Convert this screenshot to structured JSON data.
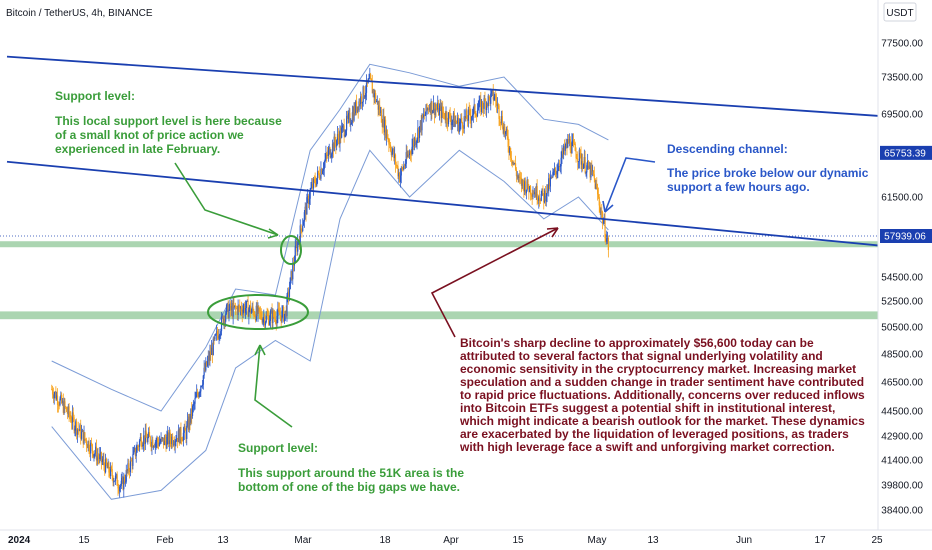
{
  "header": {
    "title": "Bitcoin / TetherUS, 4h, BINANCE"
  },
  "currency_badge": "USDT",
  "colors": {
    "channel": "#1a3fb0",
    "zone": "#8fc797",
    "green_text": "#3a9d3a",
    "red_text": "#7a1020",
    "band": "#7b9bd6",
    "candle_up": "#2a57c8",
    "candle_down": "#f7a21b",
    "axis_text": "#131722"
  },
  "chart_data": {
    "type": "candlestick",
    "symbol": "Bitcoin / TetherUS",
    "timeframe": "4h",
    "exchange": "BINANCE",
    "y_axis": {
      "ticks": [
        "77500.00",
        "73500.00",
        "69500.00",
        "61500.00",
        "54500.00",
        "52500.00",
        "50500.00",
        "48500.00",
        "46500.00",
        "44500.00",
        "42900.00",
        "41400.00",
        "39800.00",
        "38400.00"
      ],
      "ylim": [
        37800,
        79500
      ]
    },
    "x_axis": {
      "ticks": [
        "2024",
        "15",
        "Feb",
        "13",
        "Mar",
        "18",
        "Apr",
        "15",
        "May",
        "13",
        "Jun",
        "17",
        "25"
      ]
    },
    "current_price": "57939.06",
    "reference_price": "65753.39",
    "price_path": [
      {
        "date": "2024-01-10",
        "close": 46000
      },
      {
        "date": "2024-01-16",
        "close": 43000
      },
      {
        "date": "2024-01-22",
        "close": 40500
      },
      {
        "date": "2024-01-24",
        "close": 39700
      },
      {
        "date": "2024-01-28",
        "close": 42800
      },
      {
        "date": "2024-02-01",
        "close": 42500
      },
      {
        "date": "2024-02-06",
        "close": 43100
      },
      {
        "date": "2024-02-10",
        "close": 47500
      },
      {
        "date": "2024-02-14",
        "close": 51700
      },
      {
        "date": "2024-02-18",
        "close": 52000
      },
      {
        "date": "2024-02-22",
        "close": 51200
      },
      {
        "date": "2024-02-26",
        "close": 51500
      },
      {
        "date": "2024-02-28",
        "close": 56500
      },
      {
        "date": "2024-03-02",
        "close": 62000
      },
      {
        "date": "2024-03-06",
        "close": 66000
      },
      {
        "date": "2024-03-10",
        "close": 69000
      },
      {
        "date": "2024-03-14",
        "close": 73000
      },
      {
        "date": "2024-03-20",
        "close": 63500
      },
      {
        "date": "2024-03-26",
        "close": 70500
      },
      {
        "date": "2024-04-01",
        "close": 68500
      },
      {
        "date": "2024-04-08",
        "close": 71500
      },
      {
        "date": "2024-04-13",
        "close": 63000
      },
      {
        "date": "2024-04-18",
        "close": 61500
      },
      {
        "date": "2024-04-23",
        "close": 66800
      },
      {
        "date": "2024-04-28",
        "close": 63500
      },
      {
        "date": "2024-05-01",
        "close": 57000
      }
    ],
    "bands": [
      {
        "date": "2024-01-10",
        "upper": 48000,
        "lower": 43500
      },
      {
        "date": "2024-01-22",
        "upper": 46000,
        "lower": 39000
      },
      {
        "date": "2024-02-01",
        "upper": 44500,
        "lower": 39500
      },
      {
        "date": "2024-02-10",
        "upper": 49000,
        "lower": 42000
      },
      {
        "date": "2024-02-16",
        "upper": 53500,
        "lower": 47500
      },
      {
        "date": "2024-02-24",
        "upper": 53000,
        "lower": 49500
      },
      {
        "date": "2024-03-02",
        "upper": 66000,
        "lower": 48000
      },
      {
        "date": "2024-03-08",
        "upper": 70000,
        "lower": 59500
      },
      {
        "date": "2024-03-14",
        "upper": 75000,
        "lower": 66000
      },
      {
        "date": "2024-03-22",
        "upper": 74000,
        "lower": 61500
      },
      {
        "date": "2024-04-01",
        "upper": 72500,
        "lower": 66000
      },
      {
        "date": "2024-04-10",
        "upper": 73500,
        "lower": 63000
      },
      {
        "date": "2024-04-18",
        "upper": 69000,
        "lower": 59500
      },
      {
        "date": "2024-04-25",
        "upper": 68500,
        "lower": 61500
      },
      {
        "date": "2024-05-01",
        "upper": 67000,
        "lower": 58500
      }
    ],
    "channel_lines": [
      {
        "from": {
          "date": "2024-01-01",
          "price": 75900
        },
        "to": {
          "date": "2024-06-28",
          "price": 69200
        }
      },
      {
        "from": {
          "date": "2024-01-01",
          "price": 64900
        },
        "to": {
          "date": "2024-06-28",
          "price": 57000
        }
      }
    ],
    "support_zones": [
      {
        "from": 57000,
        "to": 57500
      },
      {
        "from": 51100,
        "to": 51700
      }
    ],
    "annotations": {
      "support_top_title": "Support level:",
      "support_top_body": [
        "This local support level is here because",
        "of a small knot of price action we",
        "experienced in late February."
      ],
      "channel_title": "Descending channel:",
      "channel_body": [
        "The price broke below our dynamic",
        "support a few hours ago."
      ],
      "support_bottom_title": "Support level:",
      "support_bottom_body": [
        "This support around the 51K area is the",
        "bottom of one of the big gaps we have."
      ],
      "analysis": [
        "Bitcoin's sharp decline to approximately $56,600 today can be",
        "attributed to several factors that signal underlying volatility and",
        "economic sensitivity in the cryptocurrency market. Increasing market",
        "speculation and a sudden change in trader sentiment have contributed",
        "to rapid price fluctuations. Additionally, concerns over reduced inflows",
        "into Bitcoin ETFs suggest a potential shift in institutional interest,",
        "which might indicate a bearish outlook for the market. These dynamics",
        "are exacerbated by the liquidation of leveraged positions, as traders",
        "with high leverage face a swift and unforgiving market correction."
      ]
    }
  }
}
